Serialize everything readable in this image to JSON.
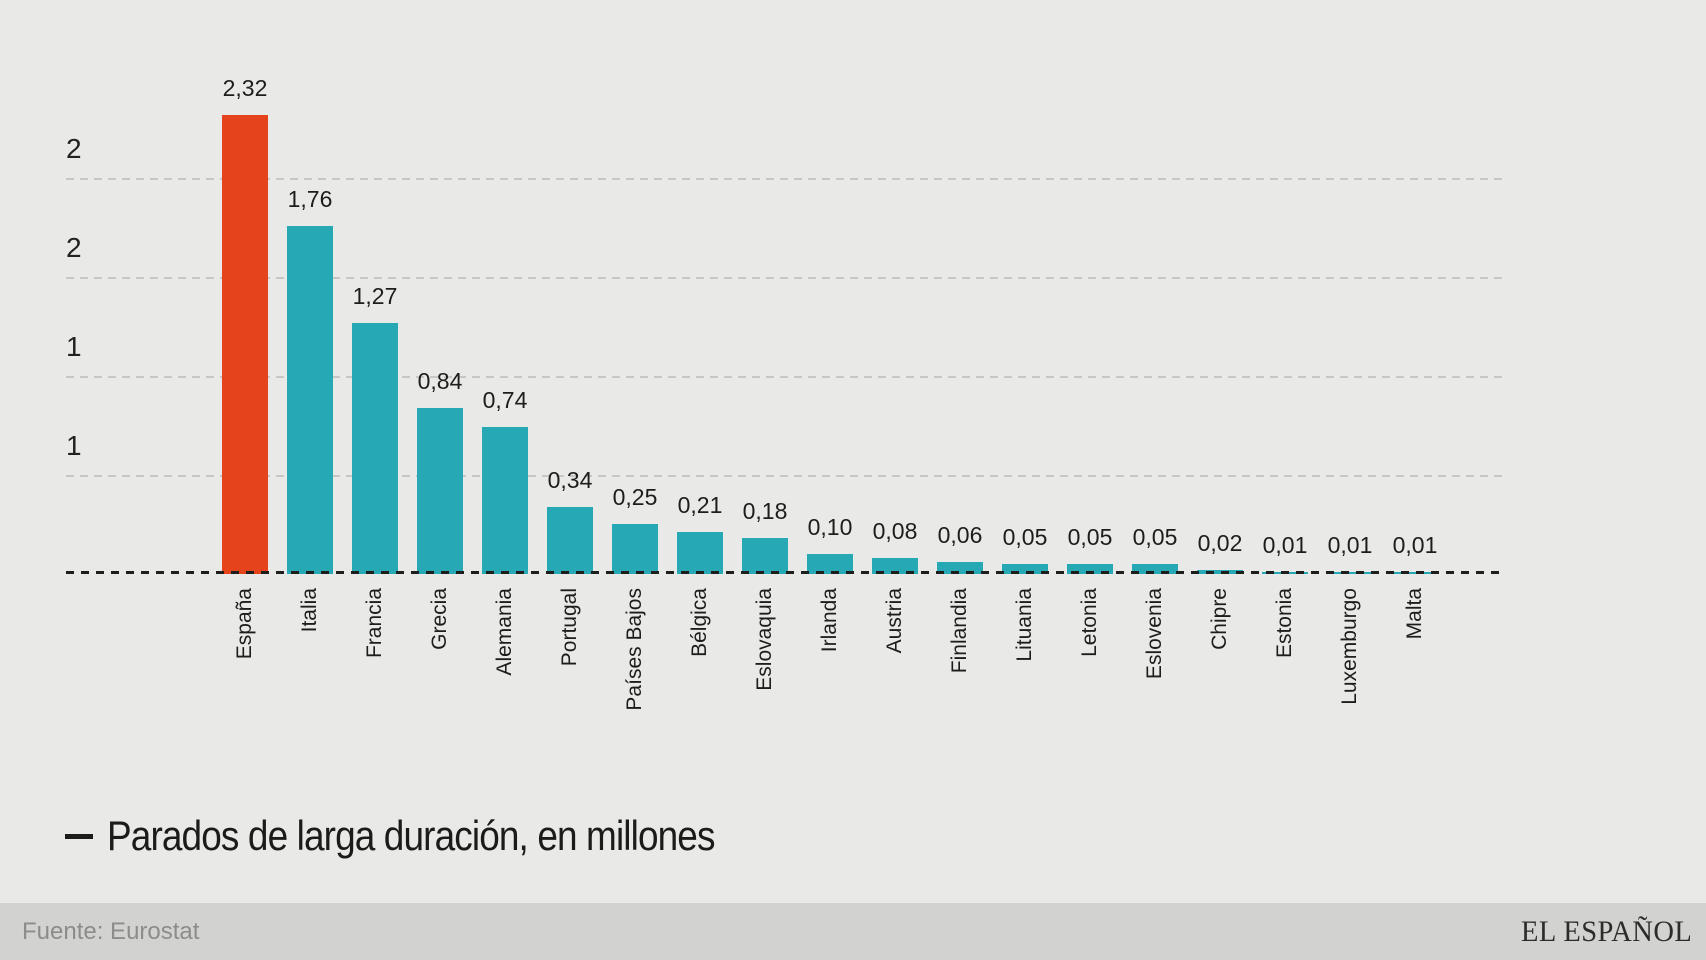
{
  "chart_data": {
    "type": "bar",
    "title": "",
    "categories": [
      "España",
      "Italia",
      "Francia",
      "Grecia",
      "Alemania",
      "Portugal",
      "Países Bajos",
      "Bélgica",
      "Eslovaquia",
      "Irlanda",
      "Austria",
      "Finlandia",
      "Lituania",
      "Letonia",
      "Eslovenia",
      "Chipre",
      "Estonia",
      "Luxemburgo",
      "Malta"
    ],
    "values": [
      2.32,
      1.76,
      1.27,
      0.84,
      0.74,
      0.34,
      0.25,
      0.21,
      0.18,
      0.1,
      0.08,
      0.06,
      0.05,
      0.05,
      0.05,
      0.02,
      0.01,
      0.01,
      0.01
    ],
    "value_labels": [
      "2,32",
      "1,76",
      "1,27",
      "0,84",
      "0,74",
      "0,34",
      "0,25",
      "0,21",
      "0,18",
      "0,10",
      "0,08",
      "0,06",
      "0,05",
      "0,05",
      "0,05",
      "0,02",
      "0,01",
      "0,01",
      "0,01"
    ],
    "xlabel": "",
    "ylabel": "",
    "ylim": [
      0,
      2.5
    ],
    "ytick_labels": [
      "2",
      "2",
      "1",
      "1"
    ],
    "ytick_values": [
      2.0,
      1.5,
      1.0,
      0.5
    ],
    "grid": "horizontal-dashed",
    "baseline_style": "black-dashed",
    "legend_position": "bottom-left",
    "highlight_category": "España",
    "colors": {
      "highlight": "#e5431b",
      "default": "#27a8b5",
      "gridline": "#c7c7c5",
      "baseline": "#1e1e1c",
      "text": "#1d1d1b"
    }
  },
  "legend": {
    "label": "Parados de larga duración, en millones"
  },
  "footer": {
    "source": "Fuente: Eurostat",
    "brand": "EL ESPAÑOL"
  },
  "page": {
    "background": "#e9e9e7",
    "footer_background": "#d2d2d0"
  }
}
